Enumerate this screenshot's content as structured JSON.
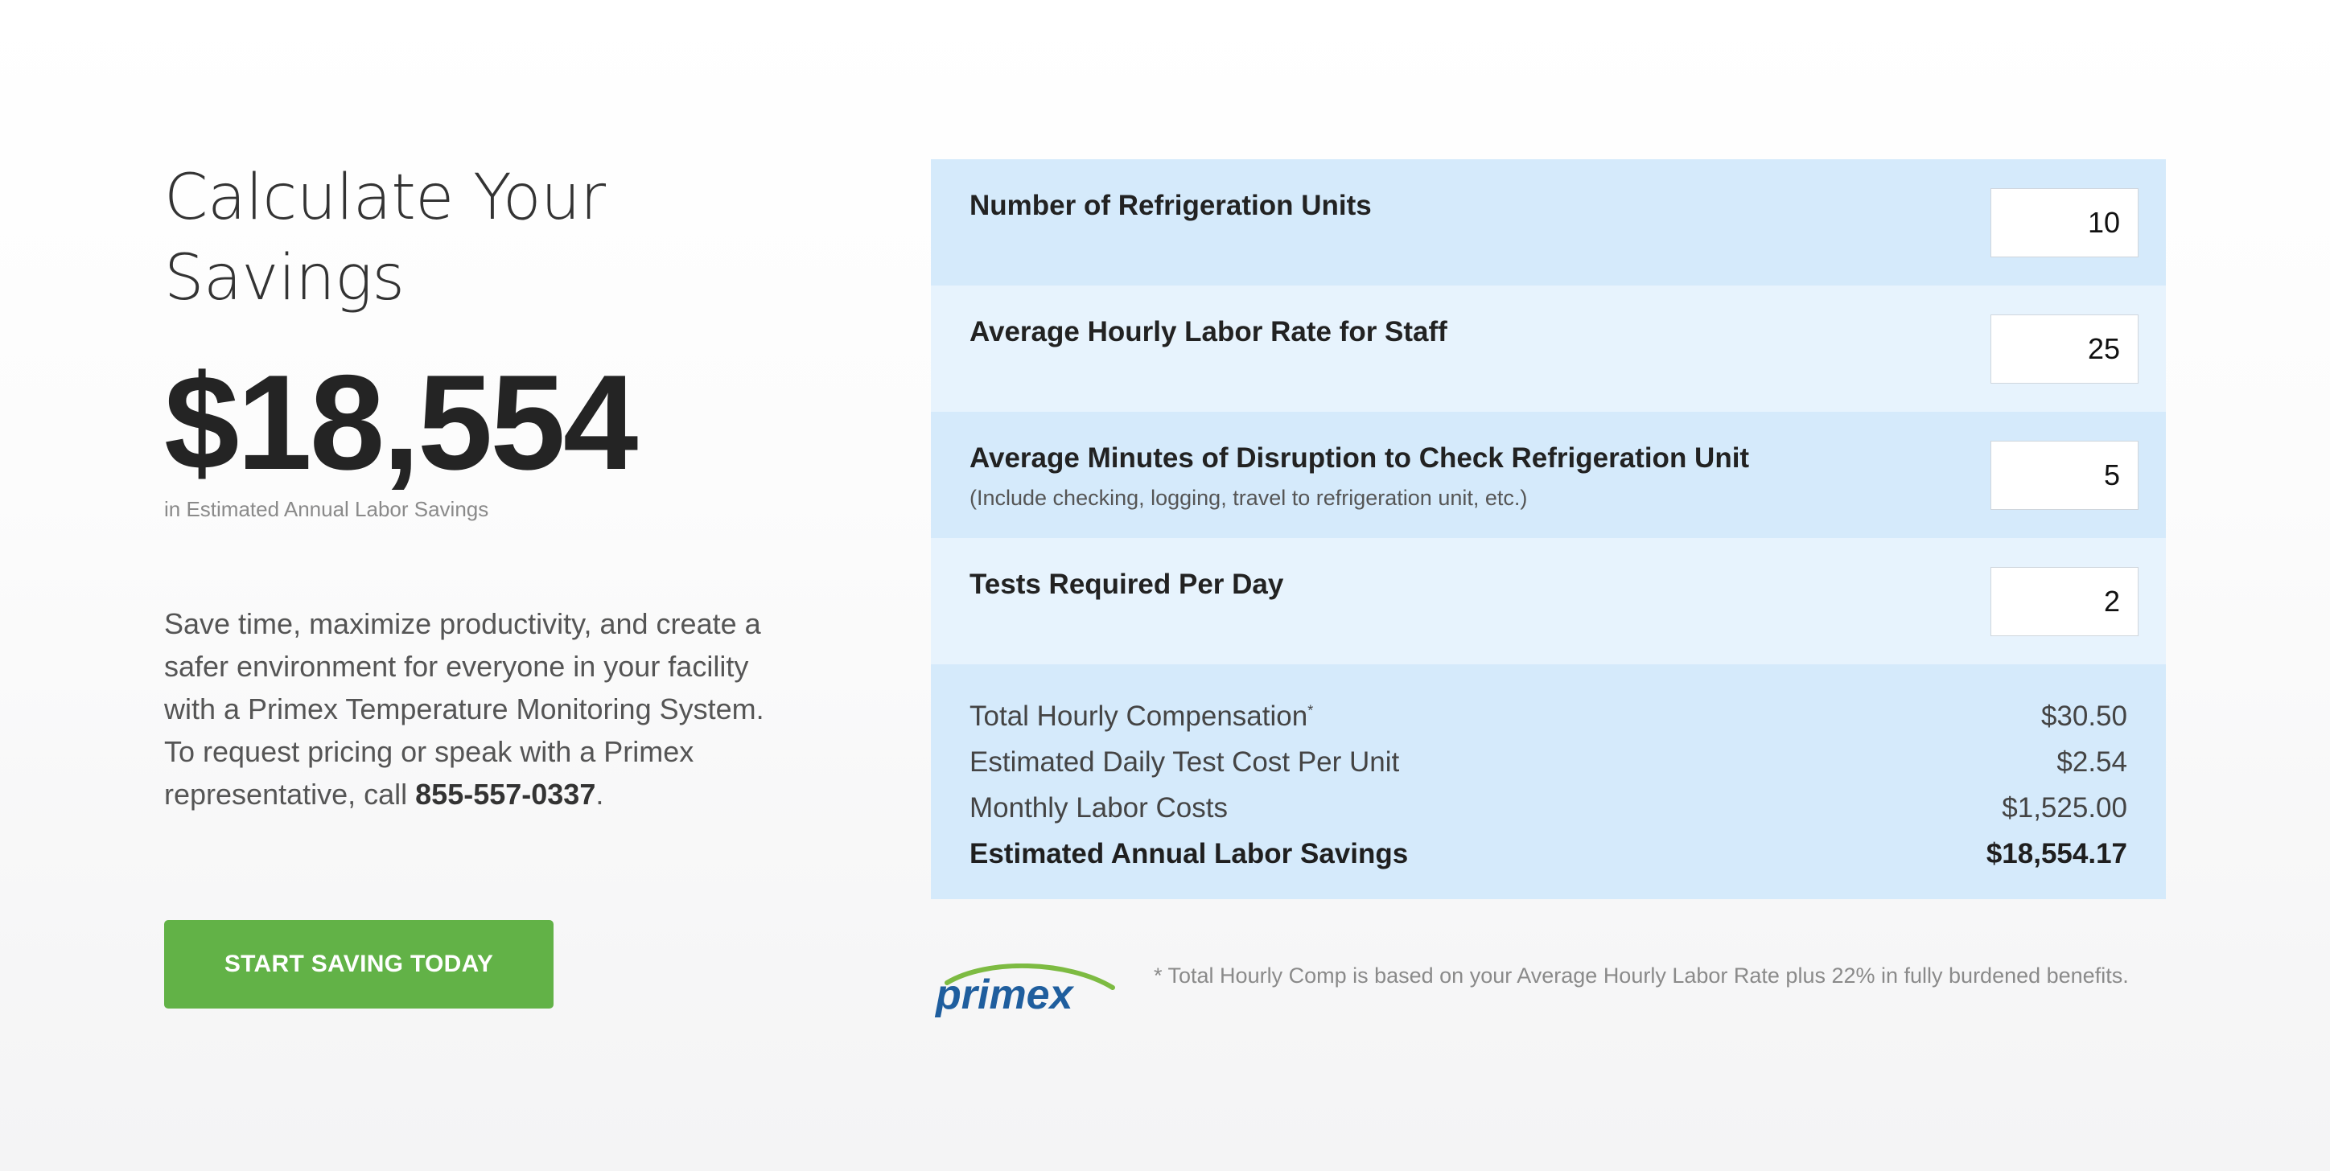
{
  "left": {
    "heading": "Calculate Your Savings",
    "amount": "$18,554",
    "amount_caption": "in Estimated Annual Labor Savings",
    "blurb": "Save time, maximize productivity, and create a safer environment for everyone in your facility with a Primex Temperature Monitoring System. To request pricing or speak with a Primex representative, call ",
    "phone": "855-557-0337",
    "blurb_end": ".",
    "cta_label": "START SAVING TODAY"
  },
  "inputs": [
    {
      "label": "Number of Refrigeration Units",
      "hint": "",
      "value": "10"
    },
    {
      "label": "Average Hourly Labor Rate for Staff",
      "hint": "",
      "value": "25"
    },
    {
      "label": "Average Minutes of Disruption to Check Refrigeration Unit",
      "hint": "(Include checking, logging, travel to refrigeration unit, etc.)",
      "value": "5"
    },
    {
      "label": "Tests Required Per Day",
      "hint": "",
      "value": "2"
    }
  ],
  "results": [
    {
      "label": "Total Hourly Compensation",
      "marker": "*",
      "value": "$30.50"
    },
    {
      "label": "Estimated Daily Test Cost Per Unit",
      "marker": "",
      "value": "$2.54"
    },
    {
      "label": "Monthly Labor Costs",
      "marker": "",
      "value": "$1,525.00"
    },
    {
      "label": "Estimated Annual Labor Savings",
      "marker": "",
      "value": "$18,554.17"
    }
  ],
  "footer": {
    "logo_text": "primex",
    "footnote": "* Total Hourly Comp is based on your Average Hourly Labor Rate plus 22% in fully burdened benefits."
  },
  "colors": {
    "cta": "#62b247",
    "panel_dark": "#d5eafb",
    "panel_light": "#e7f3fd",
    "logo_blue": "#1f5e9e",
    "logo_green": "#7dbb42"
  }
}
